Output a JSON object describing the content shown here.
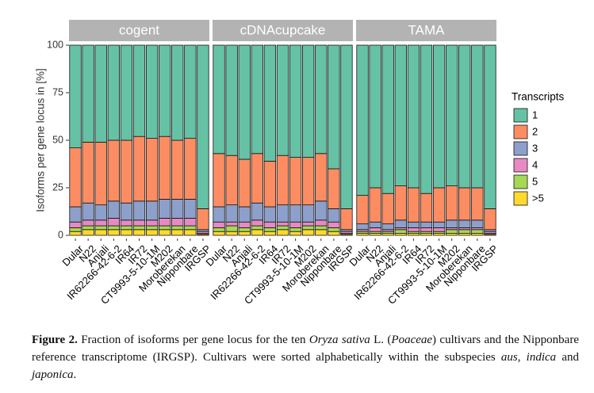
{
  "chart_data": {
    "type": "bar",
    "stacked": true,
    "facets": [
      "cogent",
      "cDNAcupcake",
      "TAMA"
    ],
    "ylabel": "Isoforms per gene locus in [%]",
    "legend_title": "Transcripts",
    "legend_position": "right",
    "categories": [
      "Dular",
      "N22",
      "Anjali",
      "IR62266-42-6-2",
      "IR64",
      "IR72",
      "CT9993-5-10-1M",
      "M202",
      "Moroberekan",
      "Nipponbare",
      "IRGSP"
    ],
    "ylim": [
      0,
      100
    ],
    "yticks": [
      0,
      25,
      50,
      75,
      100
    ],
    "series": [
      {
        "name": "1",
        "color": "#66c2a5",
        "values": [
          [
            54,
            51,
            51,
            50,
            50,
            48,
            49,
            48,
            50,
            49,
            86
          ],
          [
            57,
            58,
            60,
            57,
            61,
            58,
            59,
            59,
            57,
            65,
            86
          ],
          [
            79,
            75,
            78,
            74,
            75,
            78,
            75,
            74,
            75,
            75,
            86
          ]
        ]
      },
      {
        "name": "2",
        "color": "#fc8d62",
        "values": [
          [
            31,
            32,
            33,
            32,
            33,
            34,
            33,
            33,
            31,
            32,
            11
          ],
          [
            28,
            26,
            25,
            26,
            24,
            26,
            25,
            25,
            25,
            21,
            11
          ],
          [
            15,
            18,
            16,
            18,
            18,
            15,
            18,
            18,
            17,
            17,
            11
          ]
        ]
      },
      {
        "name": "3",
        "color": "#8da0cb",
        "values": [
          [
            8,
            9,
            8,
            9,
            9,
            10,
            10,
            10,
            10,
            10,
            1
          ],
          [
            8,
            9,
            8,
            9,
            8,
            9,
            9,
            9,
            10,
            7,
            1
          ],
          [
            3,
            3,
            3,
            4,
            3,
            3,
            3,
            4,
            4,
            4,
            1
          ]
        ]
      },
      {
        "name": "4",
        "color": "#e78ac3",
        "values": [
          [
            3,
            3,
            3,
            4,
            3,
            3,
            3,
            4,
            4,
            4,
            1
          ],
          [
            3,
            2,
            3,
            3,
            3,
            2,
            3,
            2,
            3,
            3,
            1
          ],
          [
            1,
            2,
            1,
            1,
            2,
            2,
            2,
            1,
            1,
            1,
            1
          ]
        ]
      },
      {
        "name": "5",
        "color": "#a6d854",
        "values": [
          [
            2,
            2,
            2,
            2,
            2,
            2,
            2,
            2,
            2,
            2,
            0.5
          ],
          [
            2,
            3,
            2,
            2,
            2,
            2,
            2,
            2,
            2,
            2,
            0.5
          ],
          [
            1,
            1,
            1,
            2,
            1,
            1,
            1,
            2,
            2,
            2,
            0.5
          ]
        ]
      },
      {
        "name": ">5",
        "color": "#ffd92f",
        "values": [
          [
            2,
            3,
            3,
            3,
            3,
            3,
            3,
            3,
            3,
            3,
            0.5
          ],
          [
            2,
            2,
            2,
            3,
            2,
            3,
            2,
            3,
            3,
            2,
            0.5
          ],
          [
            1,
            1,
            1,
            1,
            1,
            1,
            1,
            1,
            1,
            1,
            0.5
          ]
        ]
      }
    ]
  },
  "caption": [
    "Figure 2.",
    " Fraction of isoforms per gene locus for the ten ",
    "Oryza sativa",
    " L. (",
    "Poaceae",
    ") cultivars and the Nipponbare reference transcriptome (IRGSP). Cultivars were sorted alphabetically within the subspecies ",
    "aus",
    ", ",
    "indica",
    " and ",
    "japonica",
    "."
  ]
}
